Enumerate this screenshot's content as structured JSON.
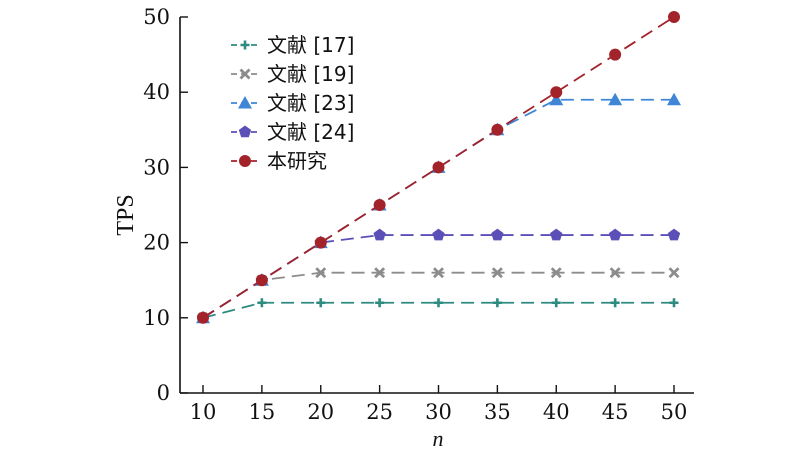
{
  "chart_data": {
    "type": "line",
    "xlabel": "n",
    "ylabel": "TPS",
    "xlim": [
      10,
      50
    ],
    "ylim": [
      0,
      50
    ],
    "x_ticks": [
      10,
      15,
      20,
      25,
      30,
      35,
      40,
      45,
      50
    ],
    "y_ticks": [
      0,
      10,
      20,
      30,
      40,
      50
    ],
    "x": [
      10,
      15,
      20,
      25,
      30,
      35,
      40,
      45,
      50
    ],
    "grid": false,
    "legend_position": "top-left",
    "series": [
      {
        "name": "文献 [17]",
        "color": "#2e8b7f",
        "marker": "plus",
        "values": [
          10,
          12,
          12,
          12,
          12,
          12,
          12,
          12,
          12
        ]
      },
      {
        "name": "文献 [19]",
        "color": "#8c8c8c",
        "marker": "x",
        "values": [
          10,
          15,
          16,
          16,
          16,
          16,
          16,
          16,
          16
        ]
      },
      {
        "name": "文献 [23]",
        "color": "#3f86d6",
        "marker": "triangle",
        "values": [
          10,
          15,
          20,
          25,
          30,
          35,
          39,
          39,
          39
        ]
      },
      {
        "name": "文献 [24]",
        "color": "#5b50b8",
        "marker": "pentagon",
        "values": [
          10,
          15,
          20,
          21,
          21,
          21,
          21,
          21,
          21
        ]
      },
      {
        "name": "本研究",
        "color": "#a3232a",
        "marker": "circle",
        "values": [
          10,
          15,
          20,
          25,
          30,
          35,
          40,
          45,
          50
        ]
      }
    ]
  }
}
